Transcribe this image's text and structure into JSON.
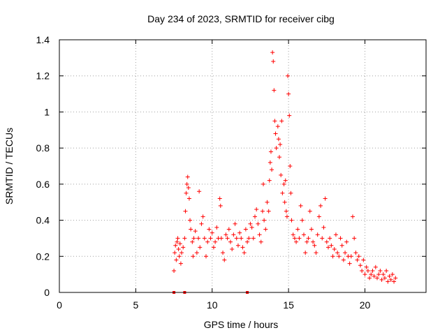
{
  "chart_data": {
    "type": "scatter",
    "title": "Day 234 of 2023, SRMTID for receiver cibg",
    "xlabel": "GPS time / hours",
    "ylabel": "SRMTID / TECUs",
    "xlim": [
      0,
      24
    ],
    "ylim": [
      0,
      1.4
    ],
    "xticks": [
      0,
      5,
      10,
      15,
      20
    ],
    "xtick_labels": [
      "0",
      "5",
      "10",
      "15",
      "20"
    ],
    "yticks": [
      0,
      0.2,
      0.4,
      0.6,
      0.8,
      1.0,
      1.2,
      1.4
    ],
    "ytick_labels": [
      "0",
      "0.2",
      "0.4",
      "0.6",
      "0.8",
      "1",
      "1.2",
      "1.4"
    ],
    "grid": true,
    "series": [
      {
        "name": "SRMTID",
        "color": "#ff0000",
        "marker": "plus",
        "points": [
          [
            7.5,
            0.12
          ],
          [
            7.55,
            0.22
          ],
          [
            7.6,
            0.26
          ],
          [
            7.65,
            0.18
          ],
          [
            7.7,
            0.28
          ],
          [
            7.75,
            0.3
          ],
          [
            7.8,
            0.24
          ],
          [
            7.85,
            0.2
          ],
          [
            7.9,
            0.27
          ],
          [
            7.95,
            0.16
          ],
          [
            8.0,
            0.22
          ],
          [
            8.1,
            0.25
          ],
          [
            8.2,
            0.3
          ],
          [
            8.25,
            0.45
          ],
          [
            8.3,
            0.55
          ],
          [
            8.35,
            0.6
          ],
          [
            8.4,
            0.64
          ],
          [
            8.45,
            0.58
          ],
          [
            8.5,
            0.52
          ],
          [
            8.55,
            0.4
          ],
          [
            8.6,
            0.35
          ],
          [
            8.7,
            0.28
          ],
          [
            8.75,
            0.2
          ],
          [
            8.8,
            0.3
          ],
          [
            8.9,
            0.34
          ],
          [
            9.0,
            0.22
          ],
          [
            9.1,
            0.3
          ],
          [
            9.15,
            0.56
          ],
          [
            9.2,
            0.25
          ],
          [
            9.3,
            0.38
          ],
          [
            9.4,
            0.42
          ],
          [
            9.5,
            0.3
          ],
          [
            9.6,
            0.2
          ],
          [
            9.7,
            0.28
          ],
          [
            9.8,
            0.35
          ],
          [
            9.9,
            0.3
          ],
          [
            10.0,
            0.33
          ],
          [
            10.1,
            0.25
          ],
          [
            10.2,
            0.28
          ],
          [
            10.3,
            0.36
          ],
          [
            10.4,
            0.3
          ],
          [
            10.5,
            0.52
          ],
          [
            10.55,
            0.48
          ],
          [
            10.6,
            0.3
          ],
          [
            10.7,
            0.22
          ],
          [
            10.8,
            0.18
          ],
          [
            10.9,
            0.32
          ],
          [
            11.0,
            0.3
          ],
          [
            11.1,
            0.35
          ],
          [
            11.2,
            0.28
          ],
          [
            11.3,
            0.24
          ],
          [
            11.4,
            0.32
          ],
          [
            11.5,
            0.38
          ],
          [
            11.6,
            0.3
          ],
          [
            11.7,
            0.26
          ],
          [
            11.8,
            0.33
          ],
          [
            11.9,
            0.3
          ],
          [
            12.0,
            0.25
          ],
          [
            12.1,
            0.22
          ],
          [
            12.2,
            0.35
          ],
          [
            12.3,
            0.28
          ],
          [
            12.4,
            0.3
          ],
          [
            12.5,
            0.38
          ],
          [
            12.6,
            0.36
          ],
          [
            12.7,
            0.3
          ],
          [
            12.8,
            0.42
          ],
          [
            12.9,
            0.46
          ],
          [
            13.0,
            0.38
          ],
          [
            13.1,
            0.32
          ],
          [
            13.2,
            0.28
          ],
          [
            13.3,
            0.45
          ],
          [
            13.35,
            0.6
          ],
          [
            13.4,
            0.4
          ],
          [
            13.5,
            0.35
          ],
          [
            13.6,
            0.5
          ],
          [
            13.7,
            0.45
          ],
          [
            13.75,
            0.62
          ],
          [
            13.8,
            0.72
          ],
          [
            13.85,
            0.78
          ],
          [
            13.9,
            0.68
          ],
          [
            13.95,
            1.33
          ],
          [
            14.0,
            1.28
          ],
          [
            14.05,
            1.12
          ],
          [
            14.1,
            0.95
          ],
          [
            14.15,
            0.88
          ],
          [
            14.2,
            0.8
          ],
          [
            14.3,
            0.92
          ],
          [
            14.35,
            0.85
          ],
          [
            14.4,
            0.75
          ],
          [
            14.45,
            0.82
          ],
          [
            14.5,
            0.65
          ],
          [
            14.55,
            0.95
          ],
          [
            14.6,
            0.55
          ],
          [
            14.7,
            0.6
          ],
          [
            14.75,
            0.5
          ],
          [
            14.8,
            0.62
          ],
          [
            14.85,
            0.45
          ],
          [
            14.9,
            0.42
          ],
          [
            14.95,
            1.2
          ],
          [
            15.0,
            1.1
          ],
          [
            15.05,
            0.98
          ],
          [
            15.1,
            0.7
          ],
          [
            15.15,
            0.55
          ],
          [
            15.2,
            0.4
          ],
          [
            15.3,
            0.32
          ],
          [
            15.4,
            0.3
          ],
          [
            15.5,
            0.28
          ],
          [
            15.6,
            0.35
          ],
          [
            15.7,
            0.3
          ],
          [
            15.8,
            0.48
          ],
          [
            15.9,
            0.4
          ],
          [
            16.0,
            0.32
          ],
          [
            16.1,
            0.22
          ],
          [
            16.2,
            0.28
          ],
          [
            16.3,
            0.3
          ],
          [
            16.4,
            0.45
          ],
          [
            16.5,
            0.35
          ],
          [
            16.6,
            0.28
          ],
          [
            16.7,
            0.26
          ],
          [
            16.8,
            0.22
          ],
          [
            16.9,
            0.32
          ],
          [
            17.0,
            0.42
          ],
          [
            17.1,
            0.48
          ],
          [
            17.2,
            0.3
          ],
          [
            17.3,
            0.36
          ],
          [
            17.4,
            0.52
          ],
          [
            17.5,
            0.28
          ],
          [
            17.6,
            0.25
          ],
          [
            17.7,
            0.3
          ],
          [
            17.8,
            0.26
          ],
          [
            17.9,
            0.2
          ],
          [
            18.0,
            0.24
          ],
          [
            18.1,
            0.32
          ],
          [
            18.2,
            0.22
          ],
          [
            18.3,
            0.2
          ],
          [
            18.4,
            0.3
          ],
          [
            18.5,
            0.26
          ],
          [
            18.6,
            0.18
          ],
          [
            18.7,
            0.22
          ],
          [
            18.8,
            0.28
          ],
          [
            18.9,
            0.2
          ],
          [
            19.0,
            0.16
          ],
          [
            19.1,
            0.2
          ],
          [
            19.2,
            0.42
          ],
          [
            19.3,
            0.3
          ],
          [
            19.4,
            0.22
          ],
          [
            19.5,
            0.18
          ],
          [
            19.6,
            0.2
          ],
          [
            19.7,
            0.15
          ],
          [
            19.8,
            0.12
          ],
          [
            19.9,
            0.18
          ],
          [
            20.0,
            0.1
          ],
          [
            20.1,
            0.14
          ],
          [
            20.2,
            0.12
          ],
          [
            20.3,
            0.08
          ],
          [
            20.4,
            0.1
          ],
          [
            20.5,
            0.12
          ],
          [
            20.6,
            0.09
          ],
          [
            20.7,
            0.14
          ],
          [
            20.8,
            0.08
          ],
          [
            20.9,
            0.1
          ],
          [
            21.0,
            0.12
          ],
          [
            21.1,
            0.07
          ],
          [
            21.2,
            0.1
          ],
          [
            21.3,
            0.08
          ],
          [
            21.4,
            0.12
          ],
          [
            21.5,
            0.06
          ],
          [
            21.6,
            0.09
          ],
          [
            21.7,
            0.07
          ],
          [
            21.8,
            0.1
          ],
          [
            21.9,
            0.06
          ],
          [
            22.0,
            0.08
          ]
        ]
      }
    ],
    "zero_points": [
      [
        7.5,
        0
      ],
      [
        8.2,
        0
      ],
      [
        12.3,
        0
      ]
    ]
  }
}
